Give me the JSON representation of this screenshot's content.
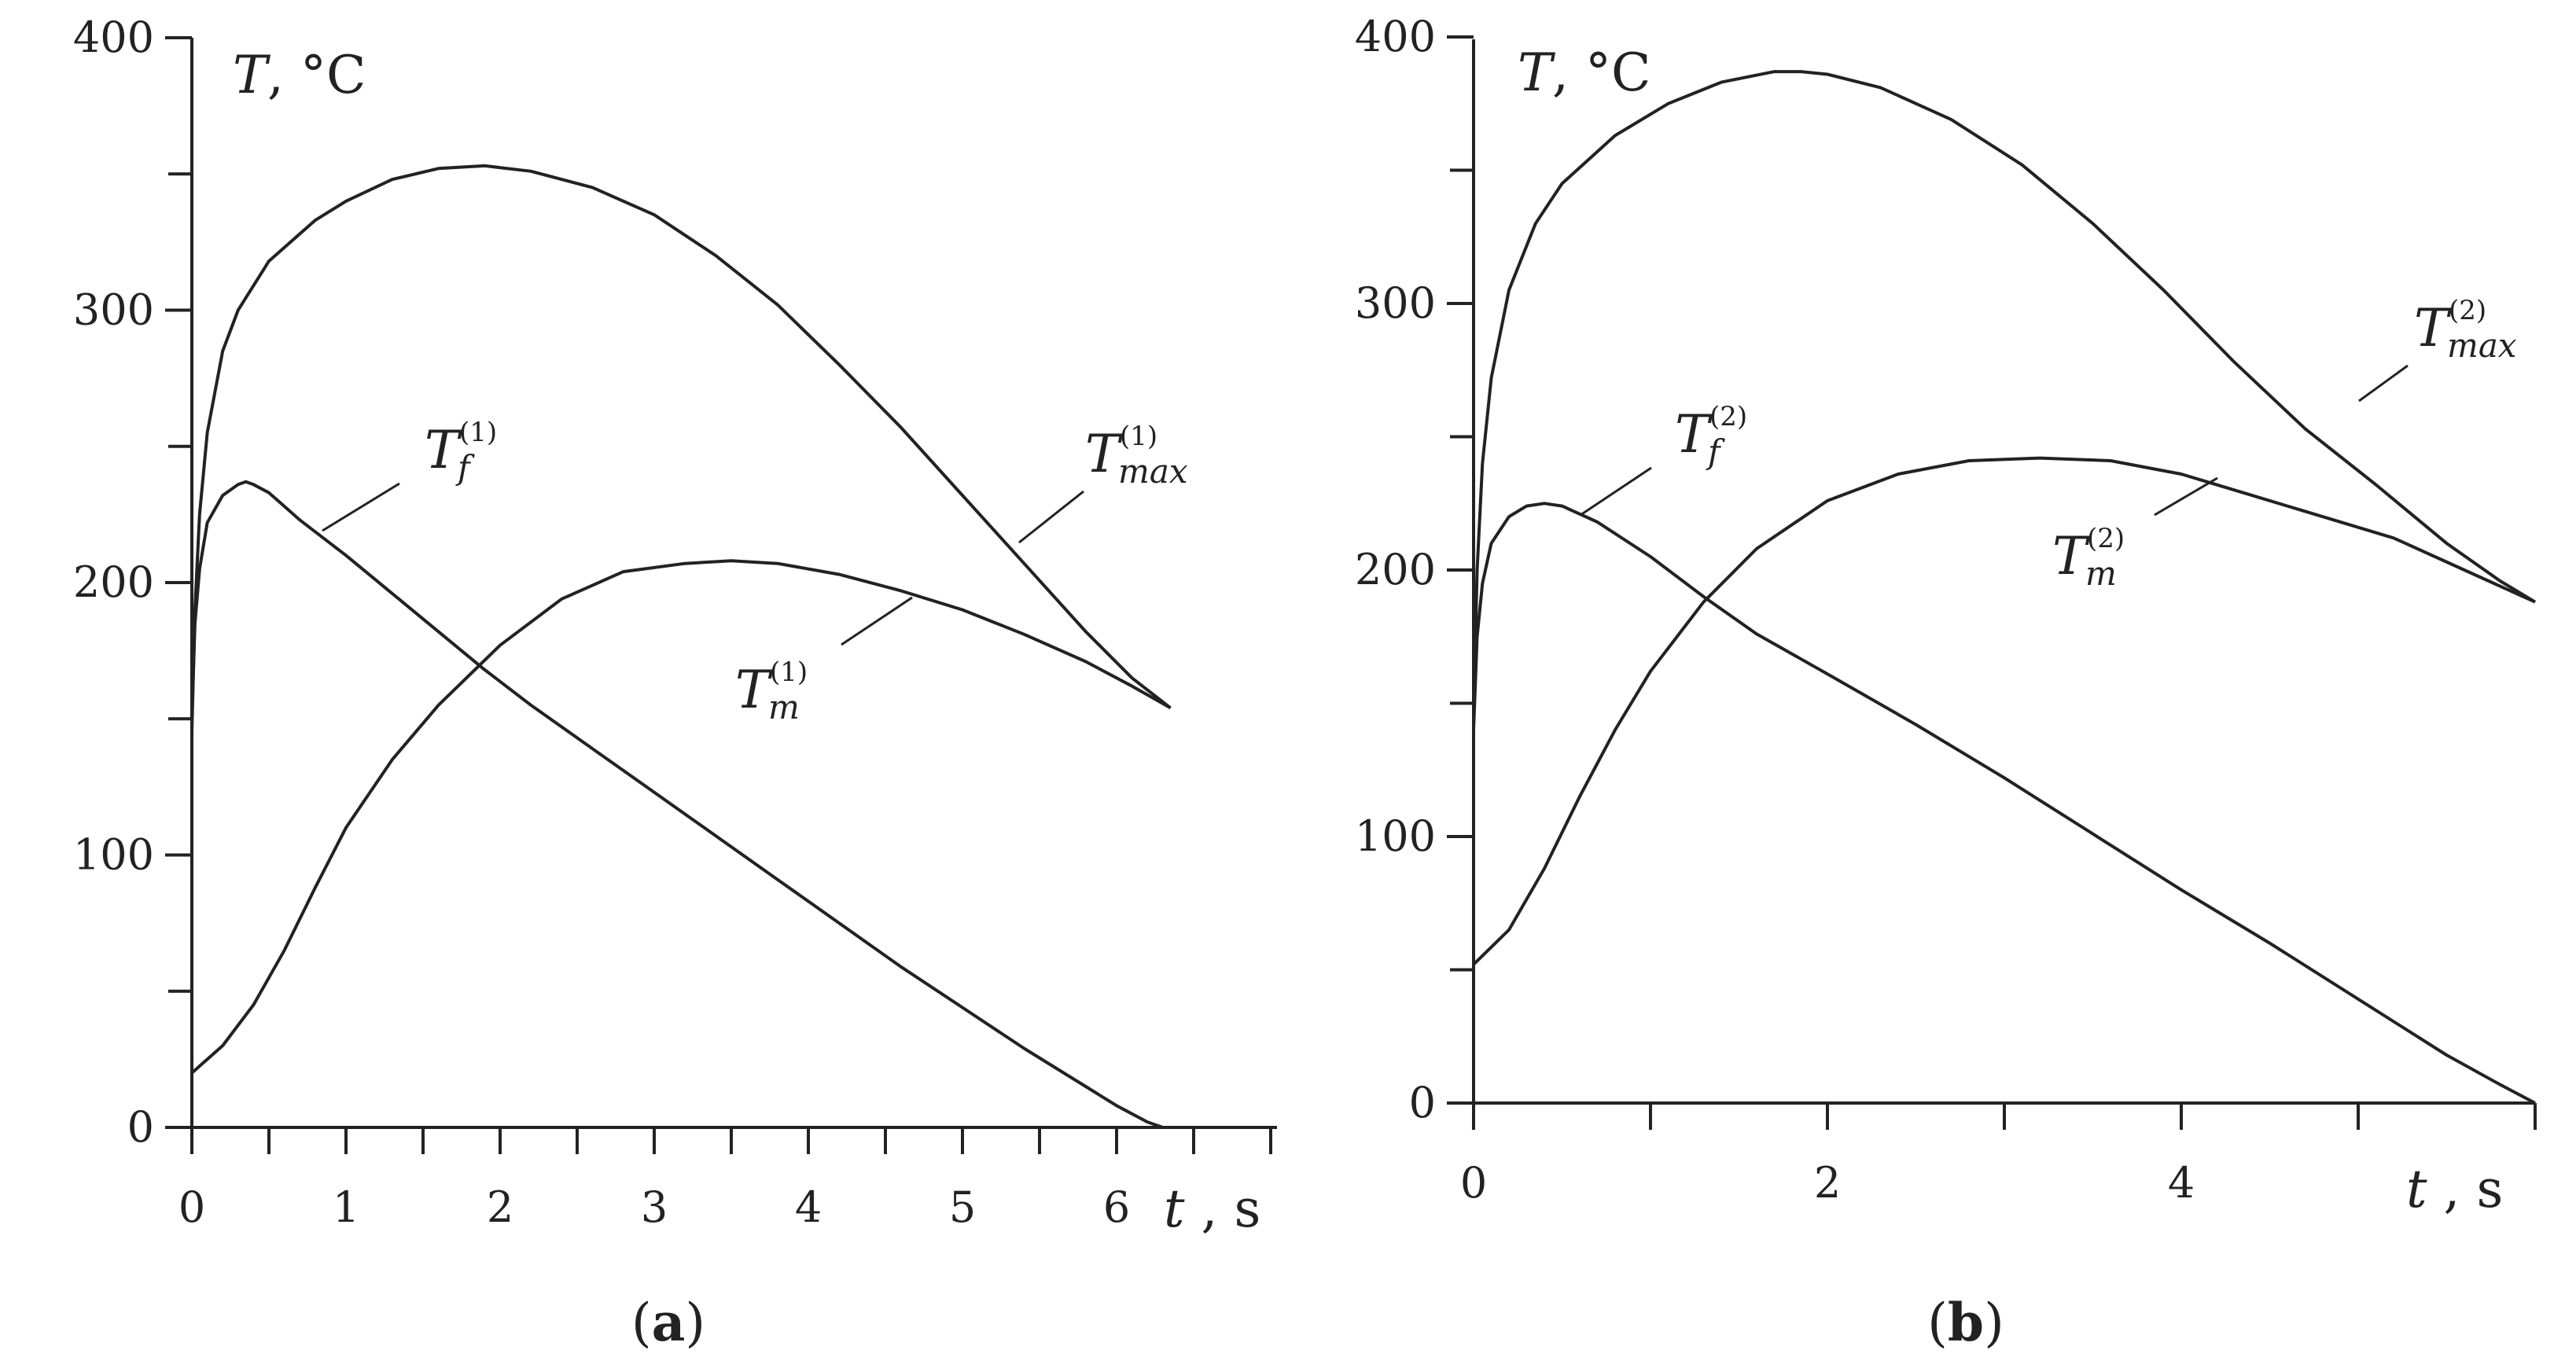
{
  "chart_data": [
    {
      "type": "line",
      "panel_label": "(a)",
      "panel_letter": "a",
      "ylabel_symbol": "T",
      "ylabel_unit": ", °C",
      "xlabel_symbol": "t",
      "xlabel_unit": " , s",
      "xlim": [
        0,
        7
      ],
      "ylim": [
        0,
        400
      ],
      "x_ticks": [
        0,
        1,
        2,
        3,
        4,
        5,
        6
      ],
      "x_minor_step": 0.5,
      "y_ticks": [
        0,
        100,
        200,
        300,
        400
      ],
      "y_minor_step": 50,
      "grid": false,
      "series": [
        {
          "name": "T_max^(1)",
          "x": [
            0,
            0.02,
            0.05,
            0.1,
            0.2,
            0.3,
            0.5,
            0.8,
            1.0,
            1.3,
            1.6,
            1.9,
            2.2,
            2.6,
            3.0,
            3.4,
            3.8,
            4.2,
            4.6,
            5.0,
            5.4,
            5.8,
            6.1,
            6.35
          ],
          "y": [
            145,
            190,
            225,
            255,
            285,
            300,
            318,
            333,
            340,
            348,
            352,
            353,
            351,
            345,
            335,
            320,
            302,
            280,
            257,
            232,
            207,
            182,
            165,
            154
          ]
        },
        {
          "name": "T_f^(1)",
          "x": [
            0,
            0.02,
            0.05,
            0.1,
            0.2,
            0.3,
            0.35,
            0.4,
            0.5,
            0.7,
            1.0,
            1.3,
            1.6,
            1.9,
            2.2,
            2.6,
            3.0,
            3.4,
            3.8,
            4.2,
            4.6,
            5.0,
            5.4,
            5.8,
            6.0,
            6.2,
            6.3
          ],
          "y": [
            150,
            185,
            205,
            222,
            232,
            236,
            237,
            236,
            233,
            223,
            210,
            196,
            182,
            168,
            155,
            139,
            123,
            107,
            91,
            75,
            59,
            44,
            29,
            15,
            8,
            2,
            0
          ]
        },
        {
          "name": "T_m^(1)",
          "x": [
            0,
            0.2,
            0.4,
            0.6,
            0.8,
            1.0,
            1.3,
            1.6,
            2.0,
            2.4,
            2.8,
            3.2,
            3.5,
            3.8,
            4.2,
            4.6,
            5.0,
            5.4,
            5.8,
            6.1,
            6.35
          ],
          "y": [
            20,
            30,
            45,
            65,
            88,
            110,
            135,
            155,
            177,
            194,
            204,
            207,
            208,
            207,
            203,
            197,
            190,
            181,
            171,
            162,
            154
          ]
        }
      ],
      "annotations": [
        {
          "series": "T_f^(1)",
          "symbol": "T",
          "subscript": "f",
          "superscript": "(1)"
        },
        {
          "series": "T_max^(1)",
          "symbol": "T",
          "subscript": "max",
          "superscript": "(1)"
        },
        {
          "series": "T_m^(1)",
          "symbol": "T",
          "subscript": "m",
          "superscript": "(1)"
        }
      ]
    },
    {
      "type": "line",
      "panel_label": "(b)",
      "panel_letter": "b",
      "ylabel_symbol": "T",
      "ylabel_unit": ", °C",
      "xlabel_symbol": "t",
      "xlabel_unit": " , s",
      "xlim": [
        0,
        6
      ],
      "ylim": [
        0,
        400
      ],
      "x_ticks": [
        0,
        2,
        4
      ],
      "x_minor_step": 1,
      "y_ticks": [
        0,
        100,
        200,
        300,
        400
      ],
      "y_minor_step": 50,
      "grid": false,
      "series": [
        {
          "name": "T_max^(2)",
          "x": [
            0,
            0.02,
            0.05,
            0.1,
            0.2,
            0.35,
            0.5,
            0.8,
            1.1,
            1.4,
            1.7,
            1.85,
            2.0,
            2.3,
            2.7,
            3.1,
            3.5,
            3.9,
            4.3,
            4.7,
            5.1,
            5.5,
            5.8,
            6.0
          ],
          "y": [
            145,
            200,
            240,
            272,
            305,
            330,
            345,
            363,
            375,
            383,
            387,
            387,
            386,
            381,
            369,
            352,
            330,
            305,
            278,
            253,
            232,
            210,
            196,
            188
          ]
        },
        {
          "name": "T_f^(2)",
          "x": [
            0,
            0.02,
            0.05,
            0.1,
            0.2,
            0.3,
            0.4,
            0.5,
            0.7,
            1.0,
            1.3,
            1.6,
            2.0,
            2.5,
            3.0,
            3.5,
            4.0,
            4.5,
            5.0,
            5.5,
            5.8,
            6.0
          ],
          "y": [
            140,
            175,
            195,
            210,
            220,
            224,
            225,
            224,
            218,
            205,
            190,
            176,
            161,
            142,
            122,
            101,
            80,
            60,
            39,
            18,
            7,
            0
          ]
        },
        {
          "name": "T_m^(2)",
          "x": [
            0,
            0.2,
            0.4,
            0.6,
            0.8,
            1.0,
            1.3,
            1.6,
            2.0,
            2.4,
            2.8,
            3.2,
            3.6,
            4.0,
            4.4,
            4.8,
            5.2,
            5.6,
            6.0
          ],
          "y": [
            52,
            65,
            88,
            115,
            140,
            162,
            188,
            208,
            226,
            236,
            241,
            242,
            241,
            236,
            228,
            220,
            212,
            200,
            188
          ]
        }
      ],
      "annotations": [
        {
          "series": "T_f^(2)",
          "symbol": "T",
          "subscript": "f",
          "superscript": "(2)"
        },
        {
          "series": "T_max^(2)",
          "symbol": "T",
          "subscript": "max",
          "superscript": "(2)"
        },
        {
          "series": "T_m^(2)",
          "symbol": "T",
          "subscript": "m",
          "superscript": "(2)"
        }
      ]
    }
  ]
}
